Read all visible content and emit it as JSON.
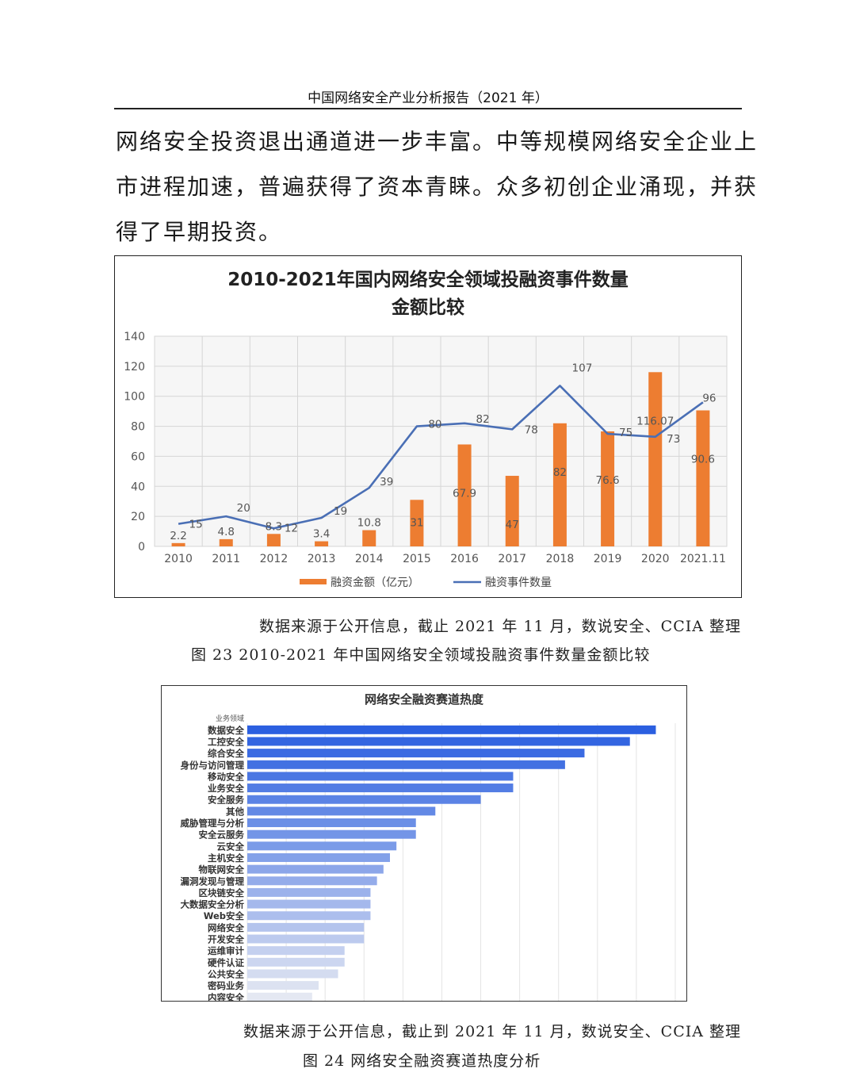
{
  "header": {
    "title": "中国网络安全产业分析报告（2021 年）"
  },
  "paragraph": {
    "lines": [
      "网络安全投资退出通道进一步丰富。中等规模网络安全企业上",
      "市进程加速，普遍获得了资本青睐。众多初创企业涌现，并获",
      "得了早期投资。"
    ]
  },
  "figure1": {
    "source": "数据来源于公开信息，截止 2021 年 11 月，数说安全、CCIA 整理",
    "caption": "图 23 2010-2021 年中国网络安全领域投融资事件数量金额比较"
  },
  "figure2": {
    "source": "数据来源于公开信息，截止到 2021 年 11 月，数说安全、CCIA 整理",
    "caption": "图 24 网络安全融资赛道热度分析"
  },
  "chart_data": [
    {
      "type": "bar",
      "title": "2010-2021年国内网络安全领域投融资事件数量",
      "subtitle": "金额比较",
      "categories": [
        "2010",
        "2011",
        "2012",
        "2013",
        "2014",
        "2015",
        "2016",
        "2017",
        "2018",
        "2019",
        "2020",
        "2021.11"
      ],
      "series": [
        {
          "name": "融资金额（亿元）",
          "type": "bar",
          "color": "#ED7D31",
          "values": [
            2.2,
            4.8,
            8.3,
            3.4,
            10.8,
            31,
            67.9,
            47,
            82,
            76.6,
            116.07,
            90.6
          ]
        },
        {
          "name": "融资事件数量",
          "type": "line",
          "color": "#4A6FB5",
          "values": [
            15,
            20,
            12,
            19,
            39,
            80,
            82,
            78,
            107,
            75,
            73,
            96
          ]
        }
      ],
      "yticks": [
        0,
        20,
        40,
        60,
        80,
        100,
        120,
        140
      ],
      "ylim": [
        0,
        140
      ],
      "grid": true,
      "legend": "bottom"
    },
    {
      "type": "bar",
      "orientation": "horizontal",
      "title": "网络安全融资赛道热度",
      "ylabel": "业务领域",
      "categories": [
        "数据安全",
        "工控安全",
        "综合安全",
        "身份与访问管理",
        "移动安全",
        "业务安全",
        "安全服务",
        "其他",
        "威胁管理与分析",
        "安全云服务",
        "云安全",
        "主机安全",
        "物联网安全",
        "漏洞发现与管理",
        "区块链安全",
        "大数据安全分析",
        "Web安全",
        "网络安全",
        "开发安全",
        "运维审计",
        "硬件认证",
        "公共安全",
        "密码业务",
        "内容安全"
      ],
      "values": [
        63,
        59,
        52,
        49,
        41,
        41,
        36,
        29,
        26,
        26,
        23,
        22,
        21,
        20,
        19,
        19,
        19,
        18,
        18,
        15,
        15,
        14,
        11,
        10
      ],
      "xlim": [
        0,
        66
      ],
      "grid": true,
      "colors": {
        "high": "#2B5FE0",
        "low": "#E4E8F2"
      }
    }
  ]
}
